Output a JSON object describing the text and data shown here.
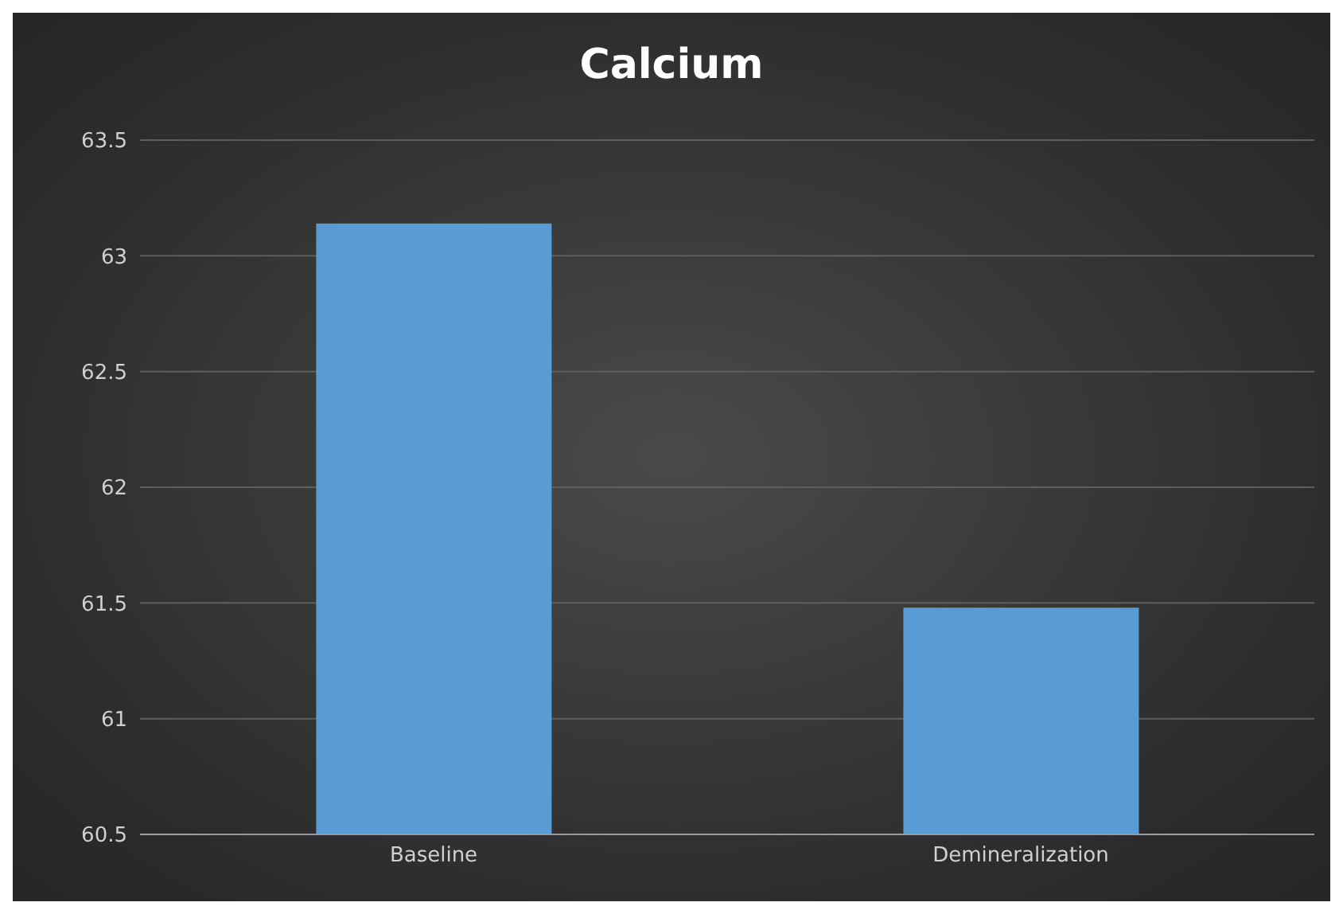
{
  "chart_data": {
    "type": "bar",
    "title": "Calcium",
    "categories": [
      "Baseline",
      "Demineralization"
    ],
    "values": [
      63.14,
      61.48
    ],
    "color": "#5b9bd5",
    "ylim": [
      60.5,
      63.5
    ],
    "yticks": [
      60.5,
      61,
      61.5,
      62,
      62.5,
      63,
      63.5
    ],
    "grid": "y"
  }
}
